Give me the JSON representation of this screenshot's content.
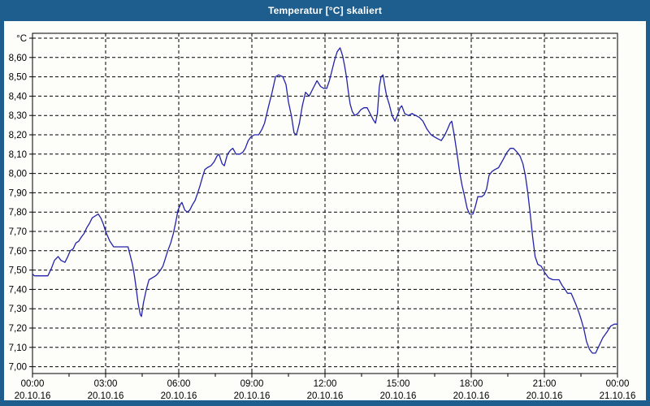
{
  "window": {
    "title": "Temperatur [°C] skaliert"
  },
  "colors": {
    "titlebar": "#1d5e8e",
    "content_background": "#fdfefa",
    "line": "#2222aa",
    "grid": "#000000",
    "text": "#000000",
    "title_text": "#ffffff"
  },
  "chart_data": {
    "type": "line",
    "title": "Temperatur [°C] skaliert",
    "grid": "dashed",
    "legend": "none",
    "y_axis": {
      "unit": "°C",
      "min": 7.0,
      "max": 8.7,
      "step": 0.1,
      "tick_labels": [
        "°C",
        "8,60",
        "8,50",
        "8,40",
        "8,30",
        "8,20",
        "8,10",
        "8,00",
        "7,90",
        "7,80",
        "7,70",
        "7,60",
        "7,50",
        "7,40",
        "7,30",
        "7,20",
        "7,10",
        "7,00"
      ],
      "tick_values": [
        8.7,
        8.6,
        8.5,
        8.4,
        8.3,
        8.2,
        8.1,
        8.0,
        7.9,
        7.8,
        7.7,
        7.6,
        7.5,
        7.4,
        7.3,
        7.2,
        7.1,
        7.0
      ]
    },
    "x_axis": {
      "hours_range": [
        0,
        24
      ],
      "major_step_hours": 3,
      "minor_step_hours": 1.5,
      "ticks": [
        {
          "hour": 0,
          "time": "00:00",
          "date": "20.10.16"
        },
        {
          "hour": 3,
          "time": "03:00",
          "date": "20.10.16"
        },
        {
          "hour": 6,
          "time": "06:00",
          "date": "20.10.16"
        },
        {
          "hour": 9,
          "time": "09:00",
          "date": "20.10.16"
        },
        {
          "hour": 12,
          "time": "12:00",
          "date": "20.10.16"
        },
        {
          "hour": 15,
          "time": "15:00",
          "date": "20.10.16"
        },
        {
          "hour": 18,
          "time": "18:00",
          "date": "20.10.16"
        },
        {
          "hour": 21,
          "time": "21:00",
          "date": "20.10.16"
        },
        {
          "hour": 24,
          "time": "00:00",
          "date": "21.10.16"
        }
      ]
    },
    "series": [
      {
        "name": "Temperatur [°C]",
        "color": "#2222aa",
        "points": [
          [
            0,
            7.48
          ],
          [
            0.08,
            7.47
          ],
          [
            0.3,
            7.47
          ],
          [
            0.63,
            7.47
          ],
          [
            0.78,
            7.51
          ],
          [
            0.9,
            7.55
          ],
          [
            1.05,
            7.57
          ],
          [
            1.17,
            7.55
          ],
          [
            1.33,
            7.54
          ],
          [
            1.45,
            7.57
          ],
          [
            1.55,
            7.6
          ],
          [
            1.67,
            7.61
          ],
          [
            1.78,
            7.64
          ],
          [
            1.9,
            7.65
          ],
          [
            2,
            7.67
          ],
          [
            2.12,
            7.69
          ],
          [
            2.23,
            7.72
          ],
          [
            2.33,
            7.74
          ],
          [
            2.45,
            7.77
          ],
          [
            2.57,
            7.78
          ],
          [
            2.7,
            7.79
          ],
          [
            2.8,
            7.77
          ],
          [
            2.9,
            7.74
          ],
          [
            3,
            7.7
          ],
          [
            3.17,
            7.65
          ],
          [
            3.33,
            7.62
          ],
          [
            3.6,
            7.62
          ],
          [
            3.92,
            7.62
          ],
          [
            4,
            7.58
          ],
          [
            4.1,
            7.53
          ],
          [
            4.17,
            7.48
          ],
          [
            4.25,
            7.41
          ],
          [
            4.33,
            7.33
          ],
          [
            4.42,
            7.27
          ],
          [
            4.47,
            7.26
          ],
          [
            4.55,
            7.33
          ],
          [
            4.67,
            7.4
          ],
          [
            4.78,
            7.45
          ],
          [
            4.92,
            7.46
          ],
          [
            5.05,
            7.47
          ],
          [
            5.13,
            7.48
          ],
          [
            5.25,
            7.5
          ],
          [
            5.35,
            7.52
          ],
          [
            5.45,
            7.56
          ],
          [
            5.55,
            7.6
          ],
          [
            5.67,
            7.64
          ],
          [
            5.78,
            7.69
          ],
          [
            5.88,
            7.75
          ],
          [
            5.97,
            7.81
          ],
          [
            6.07,
            7.84
          ],
          [
            6.13,
            7.85
          ],
          [
            6.25,
            7.81
          ],
          [
            6.35,
            7.8
          ],
          [
            6.45,
            7.81
          ],
          [
            6.57,
            7.84
          ],
          [
            6.67,
            7.86
          ],
          [
            6.78,
            7.9
          ],
          [
            6.88,
            7.94
          ],
          [
            6.97,
            7.98
          ],
          [
            7.07,
            8.02
          ],
          [
            7.17,
            8.03
          ],
          [
            7.32,
            8.04
          ],
          [
            7.45,
            8.06
          ],
          [
            7.57,
            8.09
          ],
          [
            7.65,
            8.1
          ],
          [
            7.78,
            8.05
          ],
          [
            7.87,
            8.04
          ],
          [
            8,
            8.1
          ],
          [
            8.12,
            8.12
          ],
          [
            8.22,
            8.13
          ],
          [
            8.35,
            8.1
          ],
          [
            8.5,
            8.1
          ],
          [
            8.63,
            8.11
          ],
          [
            8.73,
            8.13
          ],
          [
            8.85,
            8.17
          ],
          [
            8.97,
            8.19
          ],
          [
            9.1,
            8.2
          ],
          [
            9.28,
            8.2
          ],
          [
            9.42,
            8.23
          ],
          [
            9.52,
            8.26
          ],
          [
            9.67,
            8.34
          ],
          [
            9.83,
            8.42
          ],
          [
            9.97,
            8.5
          ],
          [
            10.1,
            8.51
          ],
          [
            10.27,
            8.5
          ],
          [
            10.4,
            8.46
          ],
          [
            10.5,
            8.37
          ],
          [
            10.62,
            8.3
          ],
          [
            10.73,
            8.21
          ],
          [
            10.83,
            8.2
          ],
          [
            10.95,
            8.26
          ],
          [
            11.07,
            8.35
          ],
          [
            11.2,
            8.42
          ],
          [
            11.35,
            8.4
          ],
          [
            11.55,
            8.45
          ],
          [
            11.67,
            8.48
          ],
          [
            11.82,
            8.45
          ],
          [
            11.95,
            8.44
          ],
          [
            12.07,
            8.44
          ],
          [
            12.18,
            8.48
          ],
          [
            12.3,
            8.54
          ],
          [
            12.4,
            8.59
          ],
          [
            12.5,
            8.63
          ],
          [
            12.62,
            8.65
          ],
          [
            12.72,
            8.61
          ],
          [
            12.8,
            8.56
          ],
          [
            12.88,
            8.5
          ],
          [
            12.95,
            8.43
          ],
          [
            13.03,
            8.36
          ],
          [
            13.12,
            8.32
          ],
          [
            13.22,
            8.3
          ],
          [
            13.35,
            8.31
          ],
          [
            13.47,
            8.33
          ],
          [
            13.6,
            8.34
          ],
          [
            13.73,
            8.34
          ],
          [
            13.85,
            8.31
          ],
          [
            13.97,
            8.28
          ],
          [
            14.07,
            8.26
          ],
          [
            14.15,
            8.31
          ],
          [
            14.23,
            8.45
          ],
          [
            14.3,
            8.5
          ],
          [
            14.38,
            8.51
          ],
          [
            14.47,
            8.44
          ],
          [
            14.53,
            8.4
          ],
          [
            14.63,
            8.36
          ],
          [
            14.75,
            8.3
          ],
          [
            14.87,
            8.27
          ],
          [
            14.97,
            8.3
          ],
          [
            15.08,
            8.34
          ],
          [
            15.15,
            8.35
          ],
          [
            15.27,
            8.31
          ],
          [
            15.42,
            8.3
          ],
          [
            15.57,
            8.31
          ],
          [
            15.72,
            8.3
          ],
          [
            15.87,
            8.29
          ],
          [
            16.02,
            8.27
          ],
          [
            16.18,
            8.23
          ],
          [
            16.35,
            8.2
          ],
          [
            16.48,
            8.19
          ],
          [
            16.62,
            8.18
          ],
          [
            16.77,
            8.17
          ],
          [
            16.92,
            8.2
          ],
          [
            17.03,
            8.23
          ],
          [
            17.13,
            8.26
          ],
          [
            17.2,
            8.27
          ],
          [
            17.3,
            8.2
          ],
          [
            17.42,
            8.1
          ],
          [
            17.52,
            8.01
          ],
          [
            17.62,
            7.94
          ],
          [
            17.73,
            7.88
          ],
          [
            17.83,
            7.82
          ],
          [
            17.93,
            7.79
          ],
          [
            18.07,
            7.79
          ],
          [
            18.17,
            7.83
          ],
          [
            18.27,
            7.88
          ],
          [
            18.43,
            7.88
          ],
          [
            18.53,
            7.89
          ],
          [
            18.63,
            7.92
          ],
          [
            18.73,
            7.99
          ],
          [
            18.85,
            8.01
          ],
          [
            18.97,
            8.02
          ],
          [
            19.12,
            8.03
          ],
          [
            19.3,
            8.07
          ],
          [
            19.47,
            8.11
          ],
          [
            19.6,
            8.13
          ],
          [
            19.73,
            8.13
          ],
          [
            19.88,
            8.11
          ],
          [
            20,
            8.09
          ],
          [
            20.12,
            8.05
          ],
          [
            20.22,
            7.99
          ],
          [
            20.32,
            7.9
          ],
          [
            20.42,
            7.79
          ],
          [
            20.52,
            7.67
          ],
          [
            20.62,
            7.57
          ],
          [
            20.73,
            7.53
          ],
          [
            20.87,
            7.52
          ],
          [
            21,
            7.49
          ],
          [
            21.17,
            7.46
          ],
          [
            21.35,
            7.45
          ],
          [
            21.6,
            7.45
          ],
          [
            21.73,
            7.42
          ],
          [
            21.85,
            7.4
          ],
          [
            21.95,
            7.38
          ],
          [
            22.1,
            7.38
          ],
          [
            22.2,
            7.35
          ],
          [
            22.3,
            7.32
          ],
          [
            22.42,
            7.28
          ],
          [
            22.52,
            7.24
          ],
          [
            22.63,
            7.19
          ],
          [
            22.73,
            7.13
          ],
          [
            22.85,
            7.09
          ],
          [
            22.97,
            7.07
          ],
          [
            23.1,
            7.07
          ],
          [
            23.25,
            7.11
          ],
          [
            23.4,
            7.15
          ],
          [
            23.57,
            7.18
          ],
          [
            23.72,
            7.21
          ],
          [
            23.87,
            7.22
          ],
          [
            24,
            7.22
          ]
        ]
      }
    ]
  }
}
